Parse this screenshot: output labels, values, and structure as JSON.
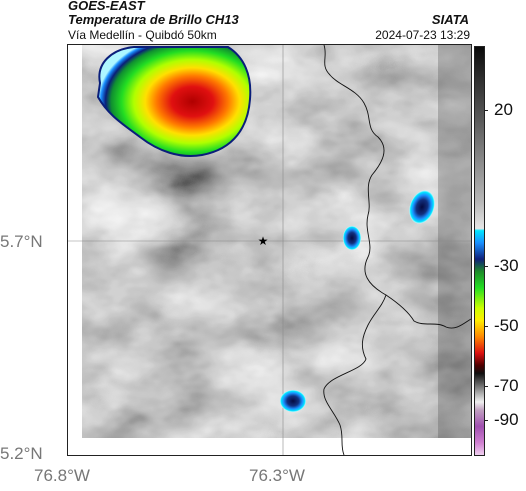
{
  "header": {
    "title_line1": "GOES-EAST",
    "title_line2": "Temperatura de Brillo CH13",
    "subtitle": "Vía Medellín - Quibdó 50km",
    "agency": "SIATA",
    "datetime": "2024-07-23 13:29"
  },
  "axes": {
    "y_labels": [
      "5.7°N",
      "5.2°N"
    ],
    "x_labels": [
      "76.8°W",
      "76.3°W"
    ]
  },
  "colorbar": {
    "labels": [
      "20",
      "-30",
      "-50",
      "-70",
      "-90"
    ],
    "colors": {
      "warm_gray_dark": "#0a0a0a",
      "warm_gray_light": "#e6e6e6",
      "cyan": "#00e5ff",
      "blue": "#10207a",
      "green": "#22dd22",
      "yellow": "#ffee00",
      "red": "#dd1010",
      "magenta": "#a050b0"
    }
  },
  "map": {
    "marker": "star-icon",
    "features": [
      "deep-convection-cell",
      "small-cloud-cells",
      "political-boundaries",
      "reference-gridlines"
    ]
  }
}
